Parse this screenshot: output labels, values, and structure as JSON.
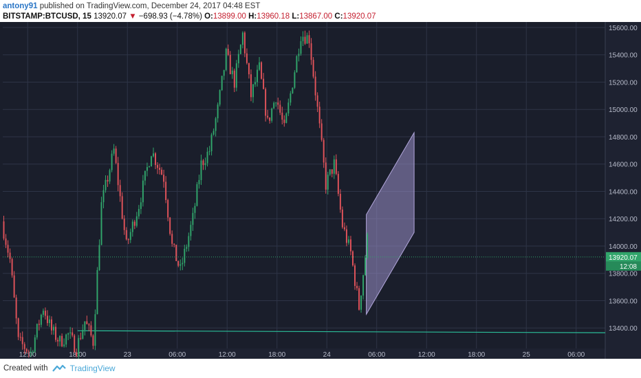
{
  "header": {
    "user": "antony91",
    "published": "published on TradingView.com, December 24, 2017 04:48 EST",
    "symbol": "BITSTAMP:BTCUSD, 15",
    "last": "13920.07",
    "change": "−698.93 (−4.78%)",
    "o_label": "O:",
    "o_val": "13899.00",
    "h_label": "H:",
    "h_val": "13960.18",
    "l_label": "L:",
    "l_val": "13867.00",
    "c_label": "C:",
    "c_val": "13920.07"
  },
  "footer": {
    "created_with": "Created with",
    "brand": "TradingView"
  },
  "colors": {
    "background": "#1a1e2b",
    "grid": "#2e3447",
    "up": "#31a56b",
    "down": "#e0535a",
    "channel": "#9b8fc9",
    "support": "#2bbf9a",
    "price_tag": "#31a56b"
  },
  "chart_data": {
    "type": "candlestick",
    "title": "",
    "xlabel": "",
    "ylabel": "",
    "ylim": [
      13250,
      15640
    ],
    "y_ticks": [
      13400,
      13600,
      13800,
      14000,
      14200,
      14400,
      14600,
      14800,
      15000,
      15200,
      15400,
      15600
    ],
    "y_tick_labels": [
      "13400.00",
      "13600.00",
      "13800.00",
      "14000.00",
      "14200.00",
      "14400.00",
      "14600.00",
      "14800.00",
      "15000.00",
      "15200.00",
      "15400.00",
      "15600.00"
    ],
    "x_range": [
      "2017-12-22 09:00",
      "2017-12-25 09:30"
    ],
    "x_ticks": [
      {
        "t": "2017-12-22 12:00",
        "label": "12:00"
      },
      {
        "t": "2017-12-22 18:00",
        "label": "18:00"
      },
      {
        "t": "2017-12-23 00:00",
        "label": "23"
      },
      {
        "t": "2017-12-23 06:00",
        "label": "06:00"
      },
      {
        "t": "2017-12-23 12:00",
        "label": "12:00"
      },
      {
        "t": "2017-12-23 18:00",
        "label": "18:00"
      },
      {
        "t": "2017-12-24 00:00",
        "label": "24"
      },
      {
        "t": "2017-12-24 06:00",
        "label": "06:00"
      },
      {
        "t": "2017-12-24 12:00",
        "label": "12:00"
      },
      {
        "t": "2017-12-24 18:00",
        "label": "18:00"
      },
      {
        "t": "2017-12-25 00:00",
        "label": "25"
      },
      {
        "t": "2017-12-25 06:00",
        "label": "06:00"
      }
    ],
    "data_start": "2017-12-22 09:00",
    "data_end": "2017-12-24 04:45",
    "close_path": [
      [
        "2017-12-22 09:00",
        14180
      ],
      [
        "2017-12-22 10:00",
        13900
      ],
      [
        "2017-12-22 11:00",
        13300
      ],
      [
        "2017-12-22 12:30",
        13220
      ],
      [
        "2017-12-22 14:00",
        13550
      ],
      [
        "2017-12-22 15:00",
        13380
      ],
      [
        "2017-12-22 16:00",
        13300
      ],
      [
        "2017-12-22 17:00",
        13350
      ],
      [
        "2017-12-22 18:00",
        13250
      ],
      [
        "2017-12-22 19:00",
        13450
      ],
      [
        "2017-12-22 20:00",
        13300
      ],
      [
        "2017-12-22 21:00",
        14300
      ],
      [
        "2017-12-22 22:30",
        14700
      ],
      [
        "2017-12-23 00:00",
        14000
      ],
      [
        "2017-12-23 01:30",
        14300
      ],
      [
        "2017-12-23 03:00",
        14700
      ],
      [
        "2017-12-23 04:30",
        14500
      ],
      [
        "2017-12-23 05:30",
        14000
      ],
      [
        "2017-12-23 06:30",
        13820
      ],
      [
        "2017-12-23 08:00",
        14200
      ],
      [
        "2017-12-23 09:00",
        14600
      ],
      [
        "2017-12-23 10:00",
        14700
      ],
      [
        "2017-12-23 11:00",
        15000
      ],
      [
        "2017-12-23 12:00",
        15400
      ],
      [
        "2017-12-23 13:00",
        15200
      ],
      [
        "2017-12-23 14:00",
        15550
      ],
      [
        "2017-12-23 15:00",
        15100
      ],
      [
        "2017-12-23 16:00",
        15300
      ],
      [
        "2017-12-23 17:00",
        14900
      ],
      [
        "2017-12-23 18:00",
        15100
      ],
      [
        "2017-12-23 19:00",
        14850
      ],
      [
        "2017-12-23 20:00",
        15200
      ],
      [
        "2017-12-23 21:00",
        15550
      ],
      [
        "2017-12-23 22:00",
        15520
      ],
      [
        "2017-12-23 23:00",
        15000
      ],
      [
        "2017-12-24 00:00",
        14450
      ],
      [
        "2017-12-24 01:00",
        14600
      ],
      [
        "2017-12-24 02:00",
        14150
      ],
      [
        "2017-12-24 03:00",
        13950
      ],
      [
        "2017-12-24 04:00",
        13550
      ],
      [
        "2017-12-24 05:00",
        14050
      ],
      [
        "2017-12-24 06:00",
        14200
      ],
      [
        "2017-12-24 07:00",
        14450
      ],
      [
        "2017-12-24 08:00",
        14200
      ],
      [
        "2017-12-24 09:00",
        14400
      ],
      [
        "2017-12-24 10:00",
        14200
      ],
      [
        "2017-12-24 10:30",
        13930
      ]
    ],
    "current_price": 13920.07,
    "current_price_label": "13920.07",
    "countdown_label": "12:08",
    "annotations": {
      "channel": {
        "lower_start": [
          "2017-12-24 04:45",
          13500
        ],
        "lower_end": [
          "2017-12-24 10:30",
          14100
        ],
        "upper_start": [
          "2017-12-24 04:45",
          14230
        ],
        "upper_end": [
          "2017-12-24 10:30",
          14830
        ]
      },
      "support_line": {
        "start": [
          "2017-12-22 18:00",
          13380
        ],
        "end": [
          "2017-12-25 09:30",
          13365
        ]
      }
    }
  }
}
